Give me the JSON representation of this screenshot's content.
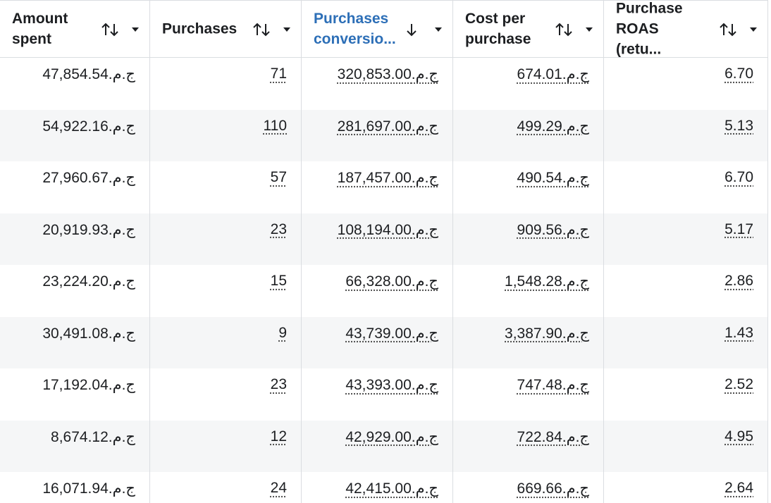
{
  "table": {
    "columns": [
      "Amount spent",
      "Purchases",
      "Purchases conversio...",
      "Cost per purchase",
      "Purchase ROAS (retu..."
    ],
    "rows": [
      [
        "ج.م.47,854.54",
        "71",
        "ج.م.320,853.00",
        "ج.م.674.01",
        "6.70"
      ],
      [
        "ج.م.54,922.16",
        "110",
        "ج.م.281,697.00",
        "ج.م.499.29",
        "5.13"
      ],
      [
        "ج.م.27,960.67",
        "57",
        "ج.م.187,457.00",
        "ج.م.490.54",
        "6.70"
      ],
      [
        "ج.م.20,919.93",
        "23",
        "ج.م.108,194.00",
        "ج.م.909.56",
        "5.17"
      ],
      [
        "ج.م.23,224.20",
        "15",
        "ج.م.66,328.00",
        "ج.م.1,548.28",
        "2.86"
      ],
      [
        "ج.م.30,491.08",
        "9",
        "ج.م.43,739.00",
        "ج.م.3,387.90",
        "1.43"
      ],
      [
        "ج.م.17,192.04",
        "23",
        "ج.م.43,393.00",
        "ج.م.747.48",
        "2.52"
      ],
      [
        "ج.م.8,674.12",
        "12",
        "ج.م.42,929.00",
        "ج.م.722.84",
        "4.95"
      ],
      [
        "ج.م.16,071.94",
        "24",
        "ج.م.42,415.00",
        "ج.م.669.66",
        "2.64"
      ]
    ]
  }
}
